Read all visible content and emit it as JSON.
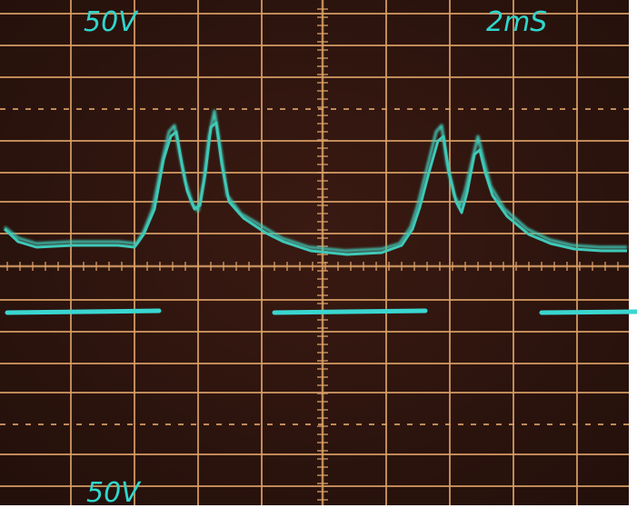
{
  "screen": {
    "top_left_label": "50V",
    "top_right_label": "2mS",
    "bottom_left_label": "50V"
  }
}
